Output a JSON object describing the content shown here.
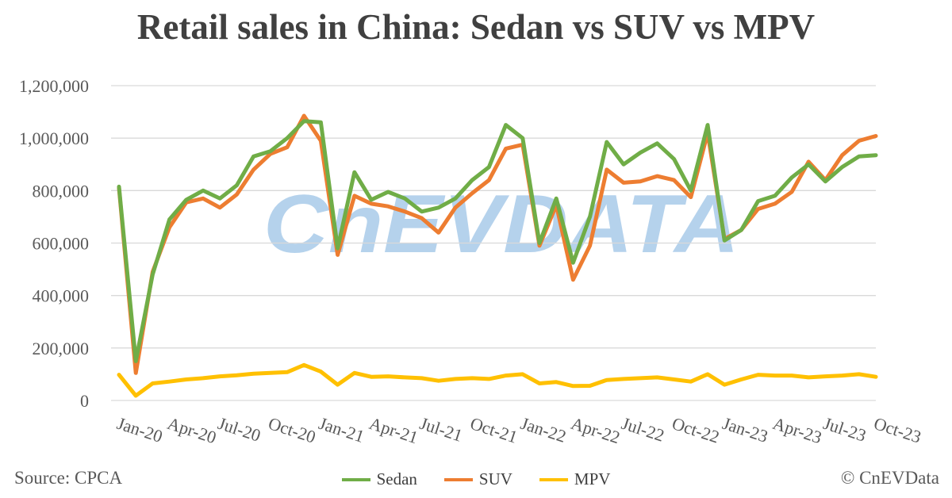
{
  "title": "Retail sales in China: Sedan vs SUV vs MPV",
  "source": "Source: CPCA",
  "copyright": "© CnEVData",
  "watermark": "CnEVDATA",
  "colors": {
    "Sedan": "#70AD47",
    "SUV": "#ED7D31",
    "MPV": "#FFC000",
    "grid": "#D9D9D9",
    "axis_text": "#595959",
    "watermark": "#5B9BD5"
  },
  "chart_data": {
    "type": "line",
    "title": "Retail sales in China: Sedan vs SUV vs MPV",
    "ylim": [
      0,
      1200000
    ],
    "yticks": [
      "0",
      "200,000",
      "400,000",
      "600,000",
      "800,000",
      "1,000,000",
      "1,200,000"
    ],
    "x_tick_labels": [
      "Jan-20",
      "Apr-20",
      "Jul-20",
      "Oct-20",
      "Jan-21",
      "Apr-21",
      "Jul-21",
      "Oct-21",
      "Jan-22",
      "Apr-22",
      "Jul-22",
      "Oct-22",
      "Jan-23",
      "Apr-23",
      "Jul-23",
      "Oct-23"
    ],
    "grid": true,
    "legend_position": "bottom",
    "x": [
      "Jan-20",
      "Feb-20",
      "Mar-20",
      "Apr-20",
      "May-20",
      "Jun-20",
      "Jul-20",
      "Aug-20",
      "Sep-20",
      "Oct-20",
      "Nov-20",
      "Dec-20",
      "Jan-21",
      "Feb-21",
      "Mar-21",
      "Apr-21",
      "May-21",
      "Jun-21",
      "Jul-21",
      "Aug-21",
      "Sep-21",
      "Oct-21",
      "Nov-21",
      "Dec-21",
      "Jan-22",
      "Feb-22",
      "Mar-22",
      "Apr-22",
      "May-22",
      "Jun-22",
      "Jul-22",
      "Aug-22",
      "Sep-22",
      "Oct-22",
      "Nov-22",
      "Dec-22",
      "Jan-23",
      "Feb-23",
      "Mar-23",
      "Apr-23",
      "May-23",
      "Jun-23",
      "Jul-23",
      "Aug-23",
      "Sep-23",
      "Oct-23"
    ],
    "series": [
      {
        "name": "Sedan",
        "values": [
          815000,
          150000,
          480000,
          690000,
          765000,
          800000,
          770000,
          820000,
          930000,
          950000,
          1000000,
          1065000,
          1060000,
          580000,
          870000,
          765000,
          795000,
          770000,
          720000,
          735000,
          770000,
          840000,
          890000,
          1050000,
          1000000,
          600000,
          770000,
          525000,
          700000,
          985000,
          900000,
          945000,
          980000,
          920000,
          800000,
          1050000,
          610000,
          650000,
          760000,
          780000,
          850000,
          900000,
          835000,
          890000,
          930000,
          935000
        ]
      },
      {
        "name": "SUV",
        "values": [
          810000,
          105000,
          490000,
          660000,
          755000,
          770000,
          735000,
          785000,
          880000,
          940000,
          965000,
          1085000,
          990000,
          555000,
          780000,
          750000,
          740000,
          720000,
          695000,
          640000,
          735000,
          790000,
          840000,
          960000,
          975000,
          590000,
          745000,
          460000,
          590000,
          880000,
          830000,
          835000,
          855000,
          840000,
          775000,
          1020000,
          615000,
          650000,
          730000,
          750000,
          795000,
          910000,
          840000,
          935000,
          990000,
          1008000
        ]
      },
      {
        "name": "MPV",
        "values": [
          98000,
          18000,
          65000,
          72000,
          80000,
          85000,
          92000,
          96000,
          102000,
          105000,
          108000,
          135000,
          110000,
          60000,
          105000,
          90000,
          92000,
          88000,
          85000,
          75000,
          82000,
          85000,
          82000,
          95000,
          100000,
          65000,
          70000,
          55000,
          56000,
          78000,
          82000,
          85000,
          88000,
          80000,
          72000,
          100000,
          60000,
          80000,
          98000,
          95000,
          95000,
          88000,
          92000,
          95000,
          100000,
          90000
        ]
      }
    ]
  }
}
